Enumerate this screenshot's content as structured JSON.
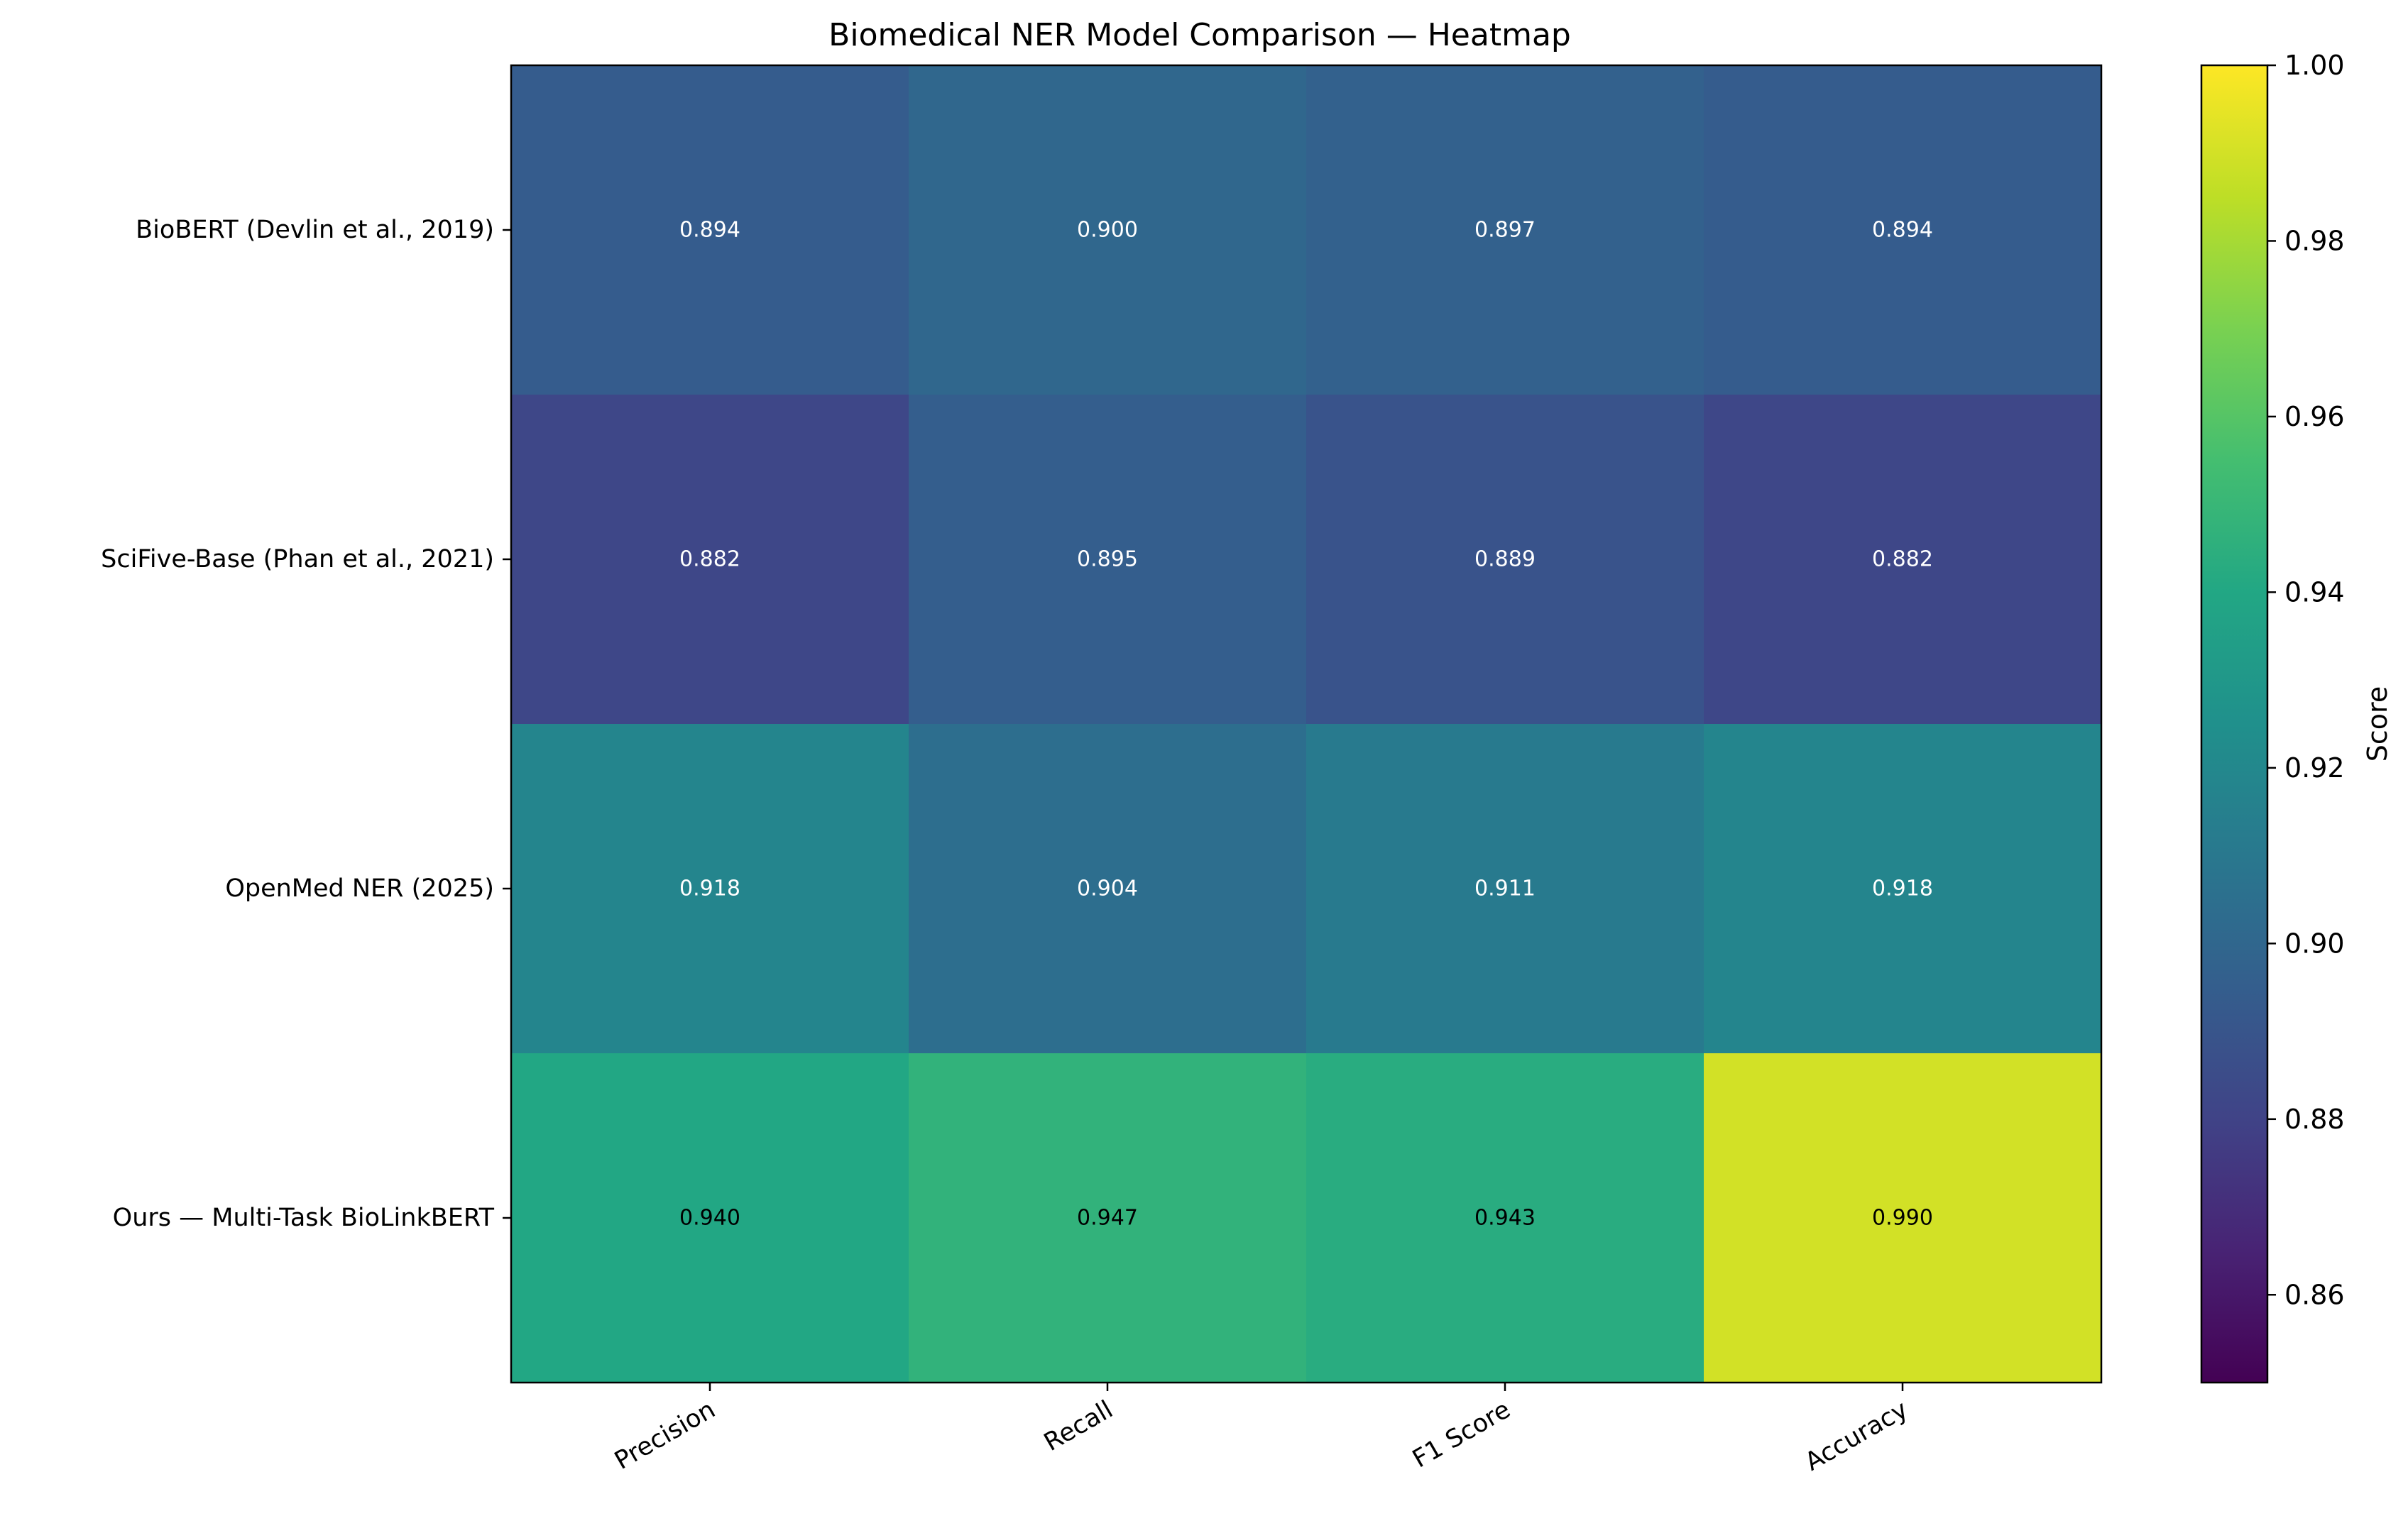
{
  "chart_data": {
    "type": "heatmap",
    "title": "Biomedical NER Model Comparison — Heatmap",
    "rows": [
      "BioBERT (Devlin et al., 2019)",
      "SciFive-Base (Phan et al., 2021)",
      "OpenMed NER (2025)",
      "Ours — Multi-Task BioLinkBERT"
    ],
    "columns": [
      "Precision",
      "Recall",
      "F1 Score",
      "Accuracy"
    ],
    "values": [
      [
        0.894,
        0.9,
        0.897,
        0.894
      ],
      [
        0.882,
        0.895,
        0.889,
        0.882
      ],
      [
        0.918,
        0.904,
        0.911,
        0.918
      ],
      [
        0.94,
        0.947,
        0.943,
        0.99
      ]
    ],
    "value_labels": [
      [
        "0.894",
        "0.900",
        "0.897",
        "0.894"
      ],
      [
        "0.882",
        "0.895",
        "0.889",
        "0.882"
      ],
      [
        "0.918",
        "0.904",
        "0.911",
        "0.918"
      ],
      [
        "0.940",
        "0.947",
        "0.943",
        "0.990"
      ]
    ],
    "colormap": "viridis",
    "vmin": 0.85,
    "vmax": 1.0,
    "colorbar": {
      "label": "Score",
      "ticks": [
        0.86,
        0.88,
        0.9,
        0.92,
        0.94,
        0.96,
        0.98,
        1.0
      ],
      "tick_labels": [
        "0.86",
        "0.88",
        "0.90",
        "0.92",
        "0.94",
        "0.96",
        "0.98",
        "1.00"
      ]
    },
    "grid": false,
    "legend": "colorbar-right"
  }
}
